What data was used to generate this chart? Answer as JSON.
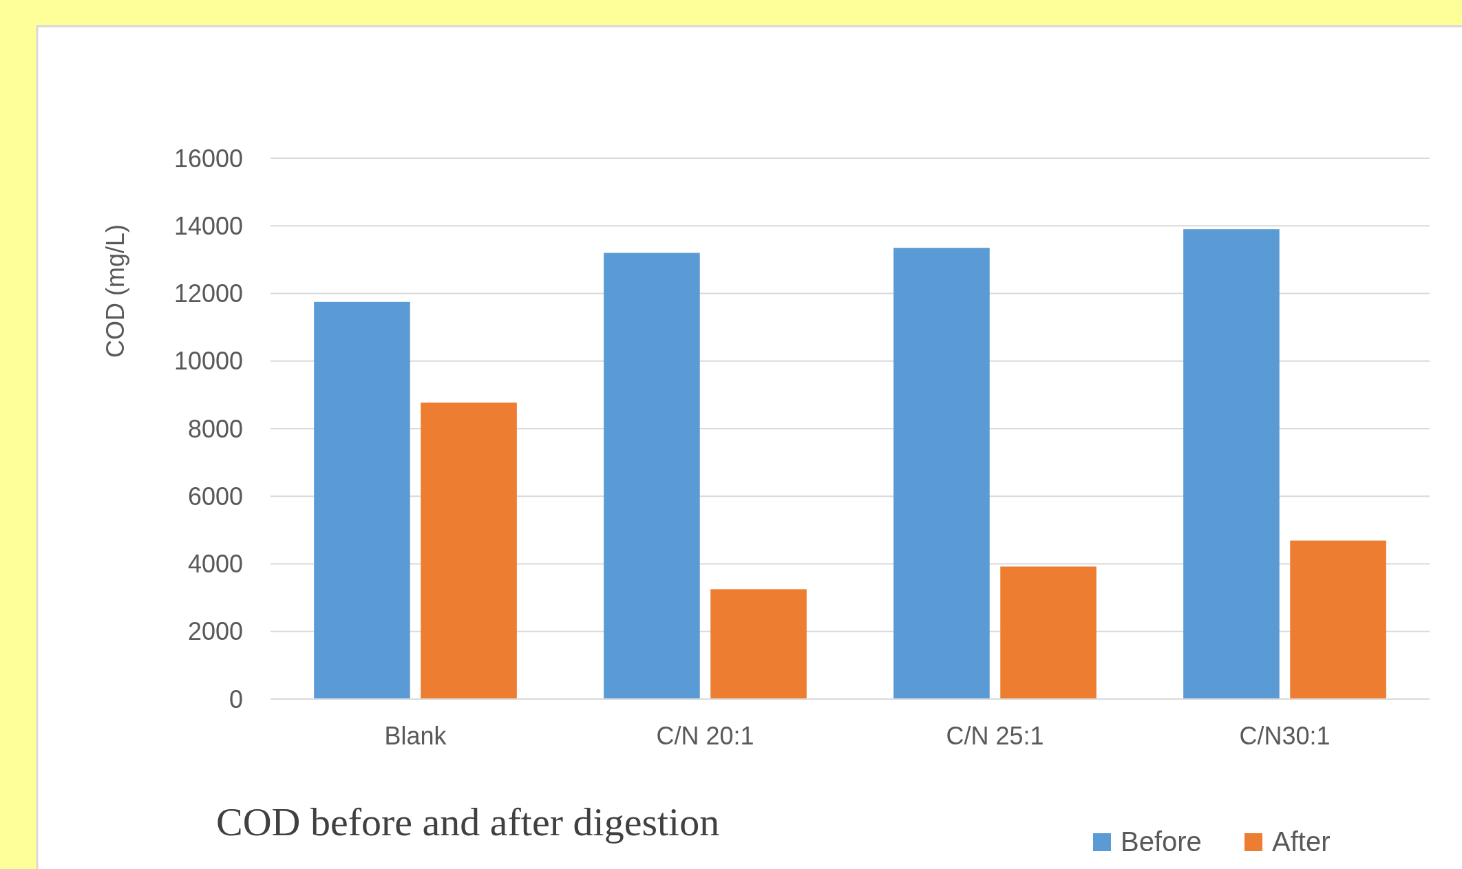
{
  "chart_data": {
    "type": "bar",
    "title": "COD before and after digestion",
    "ylabel": "COD (mg/L)",
    "categories": [
      "Blank",
      "C/N 20:1",
      "C/N 25:1",
      "C/N30:1"
    ],
    "series": [
      {
        "name": "Before",
        "color": "#5b9bd5",
        "values": [
          11750,
          13200,
          13350,
          13900
        ]
      },
      {
        "name": "After",
        "color": "#ed7d31",
        "values": [
          8770,
          3250,
          3920,
          4690
        ]
      }
    ],
    "ylim": [
      0,
      16000
    ],
    "yticks": [
      0,
      2000,
      4000,
      6000,
      8000,
      10000,
      12000,
      14000,
      16000
    ],
    "grid": "y",
    "legend": "bottom right"
  }
}
